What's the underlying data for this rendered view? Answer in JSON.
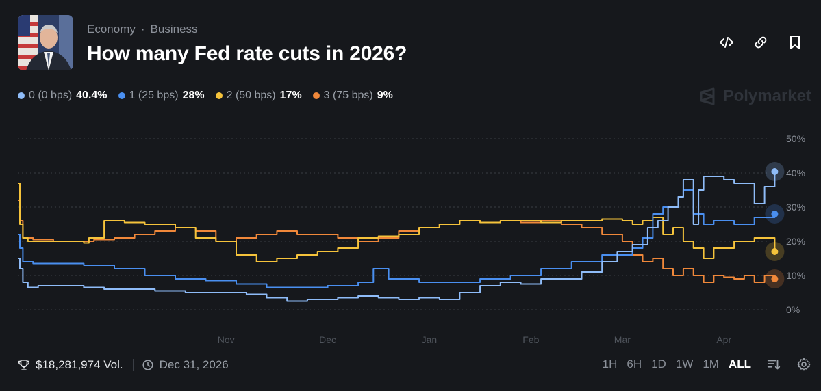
{
  "header": {
    "breadcrumb": [
      "Economy",
      "Business"
    ],
    "breadcrumb_separator": "·",
    "title": "How many Fed rate cuts in 2026?"
  },
  "brand": {
    "name": "Polymarket"
  },
  "legend": [
    {
      "label": "0 (0 bps)",
      "value": "40.4%",
      "color": "#8fbcf8"
    },
    {
      "label": "1 (25 bps)",
      "value": "28%",
      "color": "#4a8ff0"
    },
    {
      "label": "2 (50 bps)",
      "value": "17%",
      "color": "#f5c33b"
    },
    {
      "label": "3 (75 bps)",
      "value": "9%",
      "color": "#f0883a"
    }
  ],
  "footer": {
    "volume": "$18,281,974 Vol.",
    "end_date": "Dec 31, 2026",
    "ranges": [
      "1H",
      "6H",
      "1D",
      "1W",
      "1M",
      "ALL"
    ],
    "active_range": "ALL"
  },
  "icons": [
    "embed-icon",
    "link-icon",
    "bookmark-icon",
    "trophy-icon",
    "clock-icon",
    "sort-icon",
    "gear-icon",
    "polymarket-logo-icon"
  ],
  "chart_data": {
    "type": "line",
    "title": "How many Fed rate cuts in 2026?",
    "x_unit": "months since Oct 1, 2025",
    "x_ticks": [
      {
        "label": "Nov",
        "x": 1.0
      },
      {
        "label": "Dec",
        "x": 2.0
      },
      {
        "label": "Jan",
        "x": 3.0
      },
      {
        "label": "Feb",
        "x": 4.0
      },
      {
        "label": "Mar",
        "x": 4.9
      },
      {
        "label": "Apr",
        "x": 5.9
      }
    ],
    "xlim": [
      -1.05,
      6.35
    ],
    "ylim": [
      0,
      50
    ],
    "y_ticks": [
      "0%",
      "10%",
      "20%",
      "30%",
      "40%",
      "50%"
    ],
    "grid": true,
    "legend": "top-left",
    "series": [
      {
        "name": "0 (0 bps)",
        "color": "#8fbcf8",
        "x": [
          -1.05,
          -1.03,
          -1.0,
          -0.95,
          -0.85,
          -0.6,
          -0.4,
          -0.2,
          0.0,
          0.3,
          0.6,
          0.9,
          1.2,
          1.4,
          1.6,
          1.8,
          1.95,
          2.1,
          2.3,
          2.5,
          2.7,
          2.9,
          3.1,
          3.3,
          3.5,
          3.7,
          3.9,
          4.1,
          4.3,
          4.5,
          4.7,
          4.85,
          5.0,
          5.15,
          5.25,
          5.35,
          5.45,
          5.5,
          5.6,
          5.65,
          5.7,
          5.8,
          5.9,
          6.0,
          6.2,
          6.3,
          6.4
        ],
        "y": [
          15,
          12,
          8,
          6.5,
          7,
          7,
          6.5,
          6,
          6,
          5.5,
          5,
          5,
          4.5,
          3.5,
          2.5,
          3,
          3,
          3.5,
          4,
          3.5,
          3,
          3.5,
          3,
          5,
          7,
          8,
          7.5,
          9,
          9,
          11,
          14,
          17,
          19,
          24,
          26,
          30,
          33,
          38,
          25,
          35,
          39,
          39,
          38,
          37,
          31,
          36,
          40.4
        ]
      },
      {
        "name": "1 (25 bps)",
        "color": "#4a8ff0",
        "x": [
          -1.05,
          -1.03,
          -1.0,
          -0.9,
          -0.7,
          -0.4,
          -0.1,
          0.2,
          0.5,
          0.8,
          1.1,
          1.4,
          1.7,
          2.0,
          2.3,
          2.45,
          2.6,
          2.9,
          3.2,
          3.5,
          3.8,
          4.1,
          4.4,
          4.7,
          5.0,
          5.1,
          5.2,
          5.3,
          5.45,
          5.5,
          5.6,
          5.7,
          5.8,
          6.0,
          6.2,
          6.4
        ],
        "y": [
          22,
          18,
          14,
          13.5,
          13.5,
          13,
          12,
          10,
          9,
          8.5,
          7.5,
          6.5,
          6.5,
          7,
          8,
          12,
          9,
          8,
          8,
          9,
          10,
          12,
          14,
          16,
          18,
          21,
          28,
          30,
          33,
          35,
          28,
          25,
          26,
          25,
          27,
          28
        ]
      },
      {
        "name": "2 (50 bps)",
        "color": "#f5c33b",
        "x": [
          -1.05,
          -1.03,
          -1.0,
          -0.95,
          -0.8,
          -0.6,
          -0.4,
          -0.35,
          -0.2,
          0.0,
          0.2,
          0.35,
          0.5,
          0.7,
          0.9,
          1.1,
          1.3,
          1.5,
          1.7,
          1.9,
          2.1,
          2.3,
          2.5,
          2.7,
          2.9,
          3.1,
          3.3,
          3.5,
          3.7,
          3.9,
          4.1,
          4.3,
          4.5,
          4.7,
          4.9,
          5.0,
          5.1,
          5.2,
          5.3,
          5.4,
          5.5,
          5.6,
          5.7,
          5.8,
          6.0,
          6.2,
          6.4
        ],
        "y": [
          37,
          25,
          21,
          20,
          20,
          20,
          19.5,
          21,
          26,
          25.5,
          25,
          25,
          24,
          21,
          20,
          16,
          14,
          15,
          16,
          17,
          18,
          21,
          21.5,
          22,
          24,
          25,
          26,
          25.5,
          26,
          26,
          25.5,
          26,
          26,
          26.5,
          26,
          25,
          26,
          27,
          22,
          24,
          20,
          18,
          15,
          18,
          20,
          21,
          17
        ]
      },
      {
        "name": "3 (75 bps)",
        "color": "#f0883a",
        "x": [
          -1.05,
          -1.03,
          -1.0,
          -0.9,
          -0.7,
          -0.5,
          -0.3,
          -0.1,
          0.1,
          0.3,
          0.5,
          0.7,
          0.9,
          1.1,
          1.3,
          1.5,
          1.7,
          1.9,
          2.1,
          2.3,
          2.5,
          2.7,
          2.9,
          3.1,
          3.3,
          3.5,
          3.7,
          3.9,
          4.1,
          4.3,
          4.5,
          4.7,
          4.9,
          5.0,
          5.1,
          5.2,
          5.3,
          5.4,
          5.5,
          5.6,
          5.7,
          5.8,
          5.9,
          6.0,
          6.1,
          6.2,
          6.3,
          6.4
        ],
        "y": [
          32,
          26,
          21,
          20.5,
          20,
          20,
          20.5,
          21,
          22,
          23,
          24,
          23,
          20,
          21,
          22,
          23,
          22,
          22,
          21,
          20,
          21,
          23,
          24,
          25,
          26,
          25.5,
          26,
          25.5,
          26,
          25,
          24,
          22,
          20,
          16,
          14,
          15,
          12,
          10,
          12,
          10,
          8,
          10,
          9.5,
          9,
          10,
          8,
          10,
          9
        ]
      }
    ]
  }
}
